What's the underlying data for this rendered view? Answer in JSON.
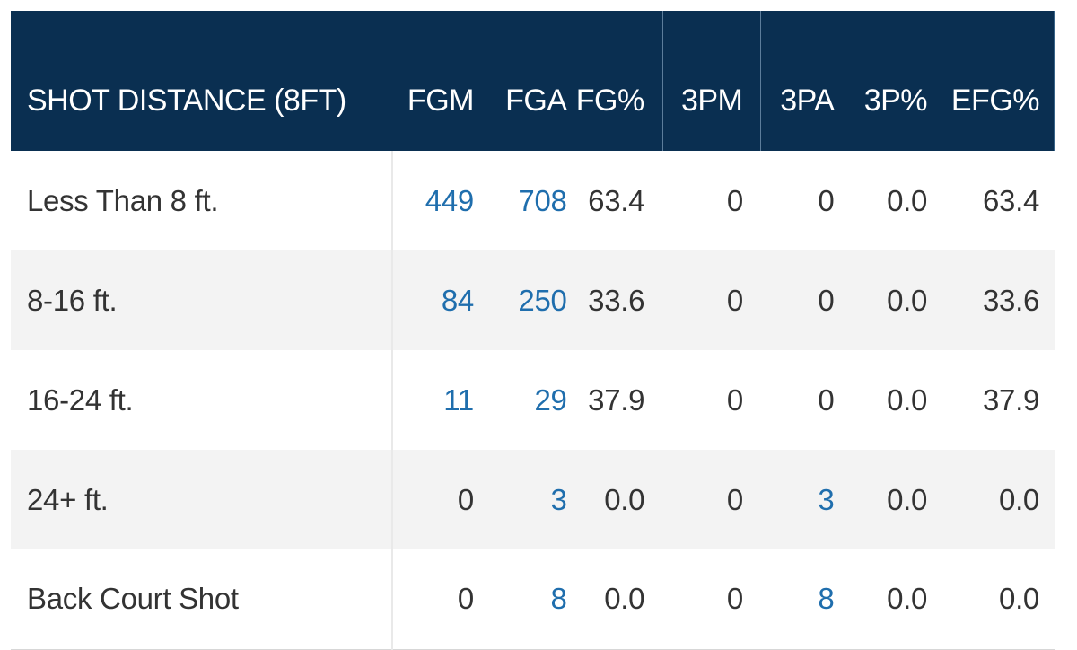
{
  "table": {
    "headers": [
      "SHOT DISTANCE (8FT)",
      "FGM",
      "FGA",
      "FG%",
      "3PM",
      "3PA",
      "3P%",
      "EFG%"
    ],
    "rows": [
      {
        "label": "Less Than 8 ft.",
        "fgm": "449",
        "fga": "708",
        "fg_pct": "63.4",
        "3pm": "0",
        "3pa": "0",
        "3p_pct": "0.0",
        "efg_pct": "63.4"
      },
      {
        "label": "8-16 ft.",
        "fgm": "84",
        "fga": "250",
        "fg_pct": "33.6",
        "3pm": "0",
        "3pa": "0",
        "3p_pct": "0.0",
        "efg_pct": "33.6"
      },
      {
        "label": "16-24 ft.",
        "fgm": "11",
        "fga": "29",
        "fg_pct": "37.9",
        "3pm": "0",
        "3pa": "0",
        "3p_pct": "0.0",
        "efg_pct": "37.9"
      },
      {
        "label": "24+ ft.",
        "fgm": "0",
        "fga": "3",
        "fg_pct": "0.0",
        "3pm": "0",
        "3pa": "3",
        "3p_pct": "0.0",
        "efg_pct": "0.0"
      },
      {
        "label": "Back Court Shot",
        "fgm": "0",
        "fga": "8",
        "fg_pct": "0.0",
        "3pm": "0",
        "3pa": "8",
        "3p_pct": "0.0",
        "efg_pct": "0.0"
      }
    ]
  },
  "colors": {
    "header_bg": "#0a2f51",
    "header_text": "#ffffff",
    "link": "#1f6ead",
    "text": "#333333",
    "alt_row": "#f3f3f3"
  }
}
